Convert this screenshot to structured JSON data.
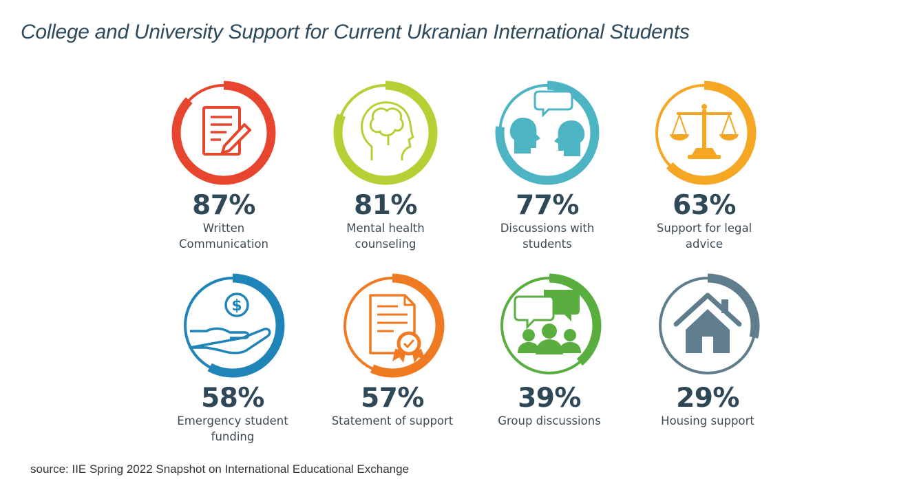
{
  "title": "College and University Support for Current Ukranian International Students",
  "source": "source: IIE Spring 2022 Snapshot on International Educational Exchange",
  "chart_data": {
    "type": "bar",
    "title": "College and University Support for Current Ukranian International Students",
    "unit": "%",
    "categories": [
      "Written Communication",
      "Mental health counseling",
      "Discussions with students",
      "Support for legal advice",
      "Emergency student funding",
      "Statement of support",
      "Group discussions",
      "Housing support"
    ],
    "values": [
      87,
      81,
      77,
      63,
      58,
      57,
      39,
      29
    ],
    "ylim": [
      0,
      100
    ]
  },
  "items": [
    {
      "pct": "87%",
      "value": 87,
      "label_line1": "Written",
      "label_line2": "Communication",
      "color": "#e8452e",
      "icon": "document-pen-icon"
    },
    {
      "pct": "81%",
      "value": 81,
      "label_line1": "Mental health",
      "label_line2": "counseling",
      "color": "#b5cf35",
      "icon": "head-brain-icon"
    },
    {
      "pct": "77%",
      "value": 77,
      "label_line1": "Discussions with",
      "label_line2": "students",
      "color": "#4db4c4",
      "icon": "two-heads-speech-icon"
    },
    {
      "pct": "63%",
      "value": 63,
      "label_line1": "Support for legal",
      "label_line2": "advice",
      "color": "#f5a623",
      "icon": "scales-icon"
    },
    {
      "pct": "58%",
      "value": 58,
      "label_line1": "Emergency student",
      "label_line2": "funding",
      "color": "#1f84b8",
      "icon": "hand-dollar-icon"
    },
    {
      "pct": "57%",
      "value": 57,
      "label_line1": "Statement of support",
      "label_line2": "",
      "color": "#f07a22",
      "icon": "certificate-icon"
    },
    {
      "pct": "39%",
      "value": 39,
      "label_line1": "Group discussions",
      "label_line2": "",
      "color": "#5aae3f",
      "icon": "group-chat-icon"
    },
    {
      "pct": "29%",
      "value": 29,
      "label_line1": "Housing support",
      "label_line2": "",
      "color": "#5f7d8c",
      "icon": "house-icon"
    }
  ]
}
